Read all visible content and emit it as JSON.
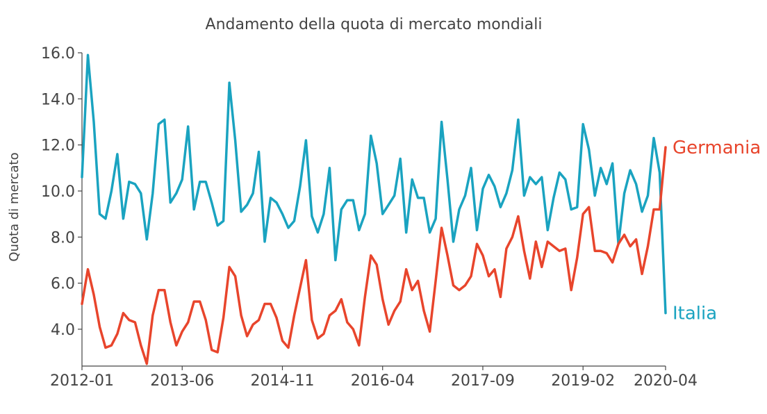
{
  "chart_data": {
    "type": "line",
    "title": "Andamento della quota di mercato mondiali",
    "xlabel": "",
    "ylabel": "Quota di mercato",
    "x_tick_labels": [
      "2012-01",
      "2013-06",
      "2014-11",
      "2016-04",
      "2017-09",
      "2019-02",
      "2020-04"
    ],
    "y_tick_labels": [
      "4.0",
      "6.0",
      "8.0",
      "10.0",
      "12.0",
      "14.0",
      "16.0"
    ],
    "y_ticks": [
      4,
      6,
      8,
      10,
      12,
      14,
      16
    ],
    "ylim": [
      2.4,
      16.0
    ],
    "x_start": "2012-01",
    "x_end": "2020-04",
    "grid": false,
    "legend": "labels at line ends (right)",
    "series": [
      {
        "name": "Italia",
        "color": "#1aa3c0",
        "values": [
          10.6,
          15.9,
          13.0,
          9.0,
          8.8,
          10.0,
          11.6,
          8.8,
          10.4,
          10.3,
          9.9,
          7.9,
          9.9,
          12.9,
          13.1,
          9.5,
          9.9,
          10.5,
          12.8,
          9.2,
          10.4,
          10.4,
          9.5,
          8.5,
          8.7,
          14.7,
          12.2,
          9.1,
          9.4,
          9.9,
          11.7,
          7.8,
          9.7,
          9.5,
          9.0,
          8.4,
          8.7,
          10.2,
          12.2,
          8.9,
          8.2,
          9.0,
          11.0,
          7.0,
          9.2,
          9.6,
          9.6,
          8.3,
          9.0,
          12.4,
          11.2,
          9.0,
          9.4,
          9.8,
          11.4,
          8.2,
          10.5,
          9.7,
          9.7,
          8.2,
          8.8,
          13.0,
          10.5,
          7.8,
          9.2,
          9.8,
          11.0,
          8.3,
          10.1,
          10.7,
          10.2,
          9.3,
          9.9,
          10.9,
          13.1,
          9.8,
          10.6,
          10.3,
          10.6,
          8.3,
          9.7,
          10.8,
          10.5,
          9.2,
          9.3,
          12.9,
          11.8,
          9.8,
          11.0,
          10.3,
          11.2,
          7.7,
          9.9,
          10.9,
          10.3,
          9.1,
          9.8,
          12.3,
          10.8,
          4.7
        ]
      },
      {
        "name": "Germania",
        "color": "#e8452c",
        "values": [
          5.1,
          6.6,
          5.5,
          4.1,
          3.2,
          3.3,
          3.8,
          4.7,
          4.4,
          4.3,
          3.3,
          2.5,
          4.6,
          5.7,
          5.7,
          4.3,
          3.3,
          3.9,
          4.3,
          5.2,
          5.2,
          4.4,
          3.1,
          3.0,
          4.5,
          6.7,
          6.3,
          4.6,
          3.7,
          4.2,
          4.4,
          5.1,
          5.1,
          4.5,
          3.5,
          3.2,
          4.6,
          5.8,
          7.0,
          4.4,
          3.6,
          3.8,
          4.6,
          4.8,
          5.3,
          4.3,
          4.0,
          3.3,
          5.4,
          7.2,
          6.8,
          5.3,
          4.2,
          4.8,
          5.2,
          6.6,
          5.7,
          6.1,
          4.8,
          3.9,
          6.1,
          8.4,
          7.2,
          5.9,
          5.7,
          5.9,
          6.3,
          7.7,
          7.2,
          6.3,
          6.6,
          5.4,
          7.5,
          8.0,
          8.9,
          7.4,
          6.2,
          7.8,
          6.7,
          7.8,
          7.6,
          7.4,
          7.5,
          5.7,
          7.1,
          9.0,
          9.3,
          7.4,
          7.4,
          7.3,
          6.9,
          7.7,
          8.1,
          7.6,
          7.9,
          6.4,
          7.6,
          9.2,
          9.2,
          11.9
        ]
      }
    ]
  }
}
